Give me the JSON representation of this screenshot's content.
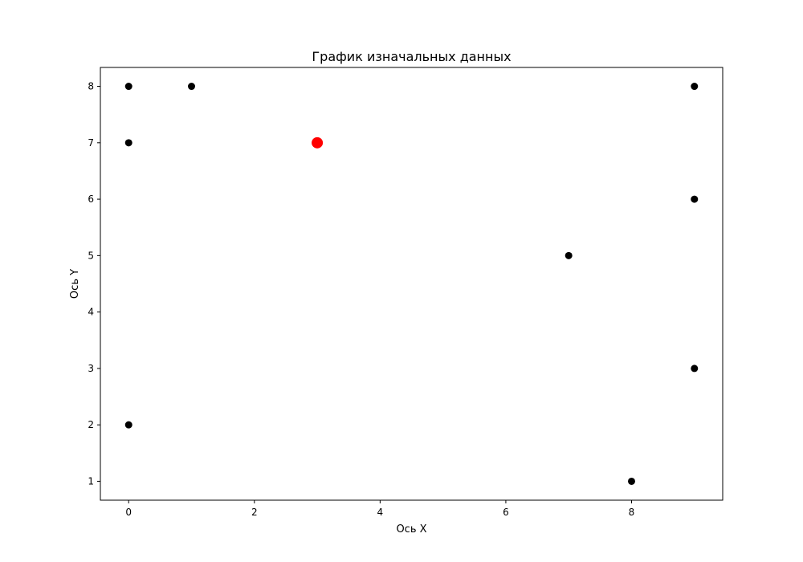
{
  "chart_data": {
    "type": "scatter",
    "title": "График изначальных данных",
    "xlabel": "Ось X",
    "ylabel": "Ось Y",
    "xlim": [
      -0.45,
      9.45
    ],
    "ylim": [
      0.665,
      8.335
    ],
    "xticks": [
      0,
      2,
      4,
      6,
      8
    ],
    "yticks": [
      1,
      2,
      3,
      4,
      5,
      6,
      7,
      8
    ],
    "grid": false,
    "series": [
      {
        "color": "#000000",
        "points": [
          {
            "x": 0,
            "y": 8
          },
          {
            "x": 1,
            "y": 8
          },
          {
            "x": 0,
            "y": 7
          },
          {
            "x": 0,
            "y": 2
          },
          {
            "x": 9,
            "y": 8
          },
          {
            "x": 9,
            "y": 6
          },
          {
            "x": 7,
            "y": 5
          },
          {
            "x": 9,
            "y": 3
          },
          {
            "x": 8,
            "y": 1
          }
        ]
      },
      {
        "color": "#ff0000",
        "points": [
          {
            "x": 3,
            "y": 7
          }
        ]
      }
    ]
  }
}
